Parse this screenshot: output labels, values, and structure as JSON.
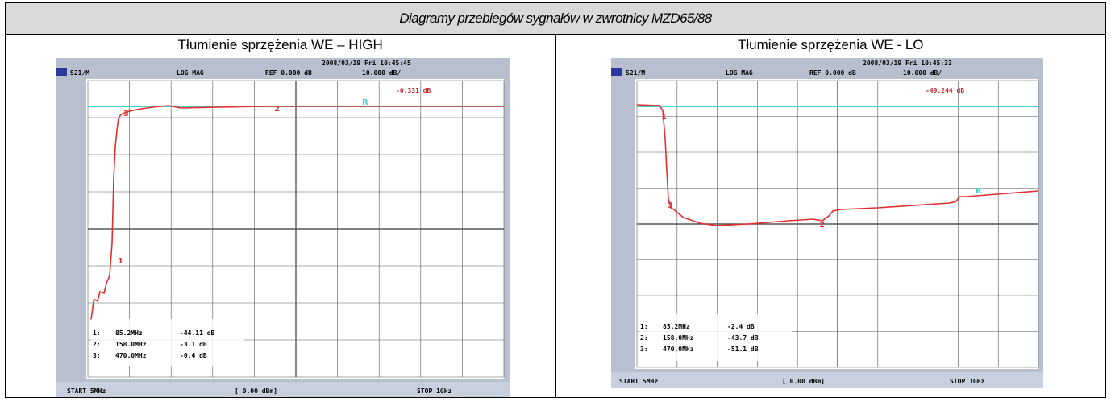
{
  "title": "Diagramy przebiegów sygnałów w zwrotnicy MZD65/88",
  "columns": [
    {
      "heading": "Tłumienie sprzężenia WE – HIGH",
      "screen": {
        "date": "2008/03/19 Fri 10:45:45",
        "channel": "S21/M",
        "format": "LOG MAG",
        "ref": "REF   0.000 dB",
        "scale": "10.000 dB/",
        "marker_readout": "-0.331 dB",
        "marker_table": [
          {
            "id": "1:",
            "freq": "85.2MHz",
            "value": "-44.11 dB"
          },
          {
            "id": "2:",
            "freq": "158.0MHz",
            "value": "-3.1 dB"
          },
          {
            "id": "3:",
            "freq": "470.0MHz",
            "value": "-0.4 dB"
          }
        ],
        "start": "START 5MHz",
        "power": "[ 0.00 dBm]",
        "stop": "STOP 1GHz"
      }
    },
    {
      "heading": "Tłumienie sprzężenia  WE - LO",
      "screen": {
        "date": "2008/03/19 Fri 10:45:33",
        "channel": "S21/M",
        "format": "LOG MAG",
        "ref": "REF   0.000 dB",
        "scale": "10.000 dB/",
        "marker_readout": "-49.244 dB",
        "marker_table": [
          {
            "id": "1:",
            "freq": "85.2MHz",
            "value": "-2.4 dB"
          },
          {
            "id": "2:",
            "freq": "158.0MHz",
            "value": "-43.7 dB"
          },
          {
            "id": "3:",
            "freq": "470.0MHz",
            "value": "-51.1 dB"
          }
        ],
        "start": "START 5MHz",
        "power": "[ 0.00 dBm]",
        "stop": "STOP 1GHz"
      }
    }
  ],
  "colors": {
    "trace": "#e03030",
    "reference": "#40d0d0",
    "grid": "#000000",
    "screen_bg": "#ffffff",
    "bezel": "#b8c0d0"
  }
}
